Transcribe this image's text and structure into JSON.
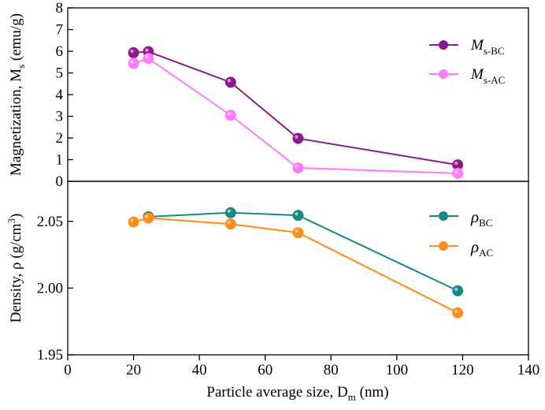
{
  "chart_data": [
    {
      "type": "line",
      "panel": "top",
      "ylabel": "Magnetization, M",
      "ylabel_sub": "s",
      "ylabel_units": " (emu/g)",
      "ylim": [
        0,
        8
      ],
      "yticks": [
        0,
        1,
        2,
        3,
        4,
        5,
        6,
        7,
        8
      ],
      "legend_position": "top-right",
      "series": [
        {
          "name": "M",
          "sub": "s-BC",
          "color": "#8c1a8c",
          "x": [
            20,
            24.5,
            49.5,
            70,
            118.5
          ],
          "values": [
            5.93,
            5.98,
            4.57,
            1.98,
            0.76
          ]
        },
        {
          "name": "M",
          "sub": "s-AC",
          "color": "#ff7aff",
          "x": [
            20,
            24.5,
            49.5,
            70,
            118.5
          ],
          "values": [
            5.44,
            5.67,
            3.05,
            0.62,
            0.37
          ]
        }
      ]
    },
    {
      "type": "line",
      "panel": "bottom",
      "ylabel": "Density, ρ (g/cm",
      "ylabel_sup": "3",
      "ylabel_units": ")",
      "ylim": [
        1.95,
        2.08
      ],
      "yticks": [
        1.95,
        2.0,
        2.05
      ],
      "legend_position": "top-right",
      "series": [
        {
          "name": "ρ",
          "sub": "BC",
          "color": "#138a84",
          "x": [
            24.5,
            49.5,
            70,
            118.5
          ],
          "values": [
            2.0535,
            2.0565,
            2.0545,
            1.998
          ]
        },
        {
          "name": "ρ",
          "sub": "AC",
          "color": "#ff8c1a",
          "x": [
            20,
            24.5,
            49.5,
            70,
            118.5
          ],
          "values": [
            2.0495,
            2.0525,
            2.048,
            2.0415,
            1.9815
          ]
        }
      ]
    }
  ],
  "xaxis": {
    "label": "Particle average size, D",
    "label_sub": "m",
    "label_units": " (nm)",
    "xlim": [
      0,
      140
    ],
    "xticks": [
      0,
      20,
      40,
      60,
      80,
      100,
      120,
      140
    ]
  }
}
